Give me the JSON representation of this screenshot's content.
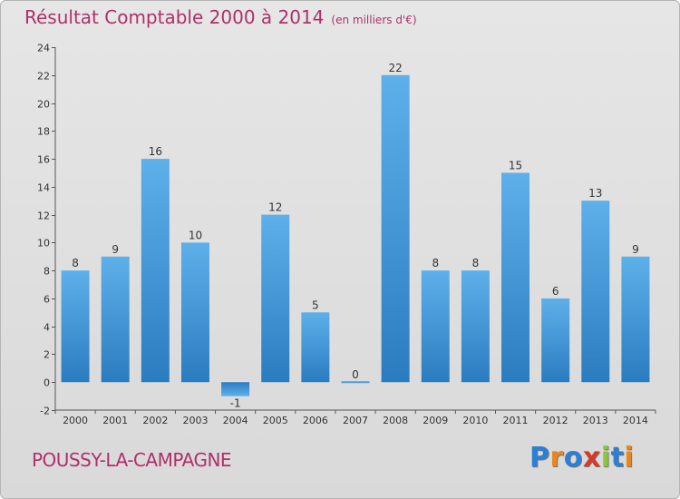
{
  "chart_data": {
    "type": "bar",
    "title": "Résultat Comptable 2000 à 2014",
    "unit_note": "(en milliers d'€)",
    "categories": [
      "2000",
      "2001",
      "2002",
      "2003",
      "2004",
      "2005",
      "2006",
      "2007",
      "2008",
      "2009",
      "2010",
      "2011",
      "2012",
      "2013",
      "2014"
    ],
    "values": [
      8,
      9,
      16,
      10,
      -1,
      12,
      5,
      0,
      22,
      8,
      8,
      15,
      6,
      13,
      9
    ],
    "value_labels": [
      "8",
      "9",
      "16",
      "10",
      "-1",
      "12",
      "5",
      "0",
      "22",
      "8",
      "8",
      "15",
      "6",
      "13",
      "9"
    ],
    "ylim": [
      -2,
      24
    ],
    "yticks": [
      -2,
      0,
      2,
      4,
      6,
      8,
      10,
      12,
      14,
      16,
      18,
      20,
      22,
      24
    ],
    "xlabel": "",
    "ylabel": "",
    "grid": false,
    "legend": "none",
    "bar_color": "#4a9fdf"
  },
  "footer": {
    "commune": "POUSSY-LA-CAMPAGNE",
    "logo": "Proxiti",
    "logo_colors": [
      "#2b7fd4",
      "#e8871e",
      "#2b7fd4",
      "#d43a2b",
      "#8cc63e",
      "#2b7fd4",
      "#e8871e"
    ]
  }
}
